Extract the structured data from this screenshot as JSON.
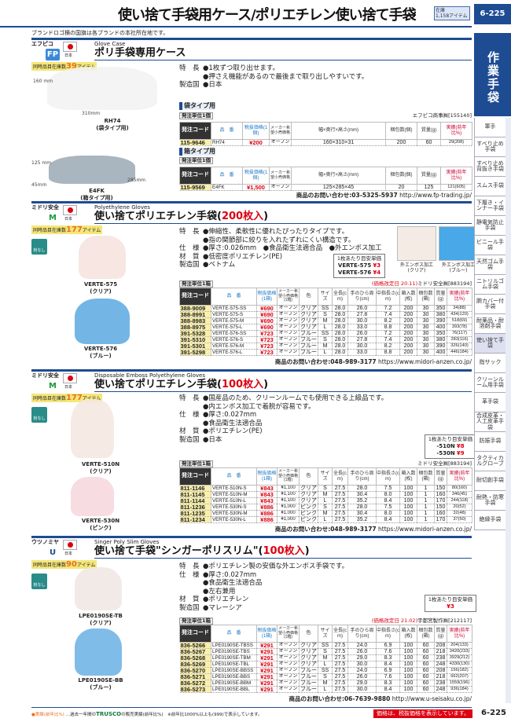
{
  "header": {
    "title": "使い捨て手袋用ケース/ポリエチレン使い捨て手袋",
    "stock_label": "在庫",
    "stock_count": "1,158アイテム",
    "page": "6-225"
  },
  "note": "ブランドロゴ横の国旗は各ブランドの本社所在地です。",
  "sidebar": {
    "category": "作業手袋",
    "active": 11,
    "items": [
      "軍手",
      "すべり止め手袋",
      "すべり止め背抜き手袋",
      "スムス手袋",
      "下履き・インナー手袋",
      "静電気防止手袋",
      "ビニール手袋",
      "天然ゴム手袋",
      "ニトリルゴム手袋",
      "腕カバー付手袋",
      "耐薬品・耐溶剤手袋",
      "使い捨て手袋",
      "指サック",
      "クリーンルーム用手袋",
      "革手袋",
      "合成皮革・人工皮革手袋",
      "防振手袋",
      "タクティカルグローブ",
      "耐切創手袋",
      "耐熱・防寒手袋",
      "絶縁手袋"
    ]
  },
  "products": [
    {
      "brand": "エフピコ",
      "logo": "FP",
      "country": "日本",
      "items_label": "同時品目在庫数",
      "items": "39",
      "items_unit": "アイテム",
      "subtitle": "Glove Case",
      "name": "ポリ手袋専用ケース",
      "name_red": "",
      "features": [
        [
          "特　長",
          "●1枚ずつ取り出せます。"
        ],
        [
          "",
          "●押さえ機能があるので最後まで取り出しやすいです。"
        ],
        [
          "製造国",
          "●日本"
        ]
      ],
      "images": [
        {
          "label": "RH74",
          "sub": "(袋タイプ用)",
          "dims": [
            "160 mm",
            "310mm"
          ]
        },
        {
          "label": "E4FK",
          "sub": "(箱タイプ用)",
          "dims": [
            "125 mm",
            "285mm",
            "45mm"
          ]
        }
      ],
      "tables": [
        {
          "tag": "袋タイプ用",
          "unit": "発注単位1個",
          "maker": "エフピコ商事㈱[155140]",
          "headers": [
            "発注コード",
            "品　番",
            "税抜価格(1個)",
            "メーカー希望小売価格",
            "幅×奥行×高さ(mm)",
            "梱包数(個)",
            "質量(g)",
            "実績(前年比%)"
          ],
          "rows": [
            [
              "115-9646",
              "RH74",
              "¥200",
              "オープン",
              "160×310×31",
              "200",
              "60",
              "29(208)"
            ]
          ]
        },
        {
          "tag": "箱タイプ用",
          "unit": "発注単位1個",
          "maker": "",
          "headers": [
            "発注コード",
            "品　番",
            "税抜価格(1個)",
            "メーカー希望小売価格",
            "幅×奥行×高さ(mm)",
            "梱包数(個)",
            "質量(g)",
            "実績(前年比%)"
          ],
          "rows": [
            [
              "115-9569",
              "E4FK",
              "¥1,500",
              "オープン",
              "125×285×45",
              "20",
              "125",
              "121(605)"
            ]
          ]
        }
      ],
      "contact": "商品のお問い合わせ:03-5325-5937",
      "url": "http://www.fp-trading.jp/"
    },
    {
      "brand": "ミドリ安全",
      "logo": "M",
      "country": "日本",
      "items_label": "同時品目在庫数",
      "items": "177",
      "items_unit": "アイテム",
      "powder": "粉なし",
      "subtitle": "Polyethylene Gloves",
      "name": "使い捨てポリエチレン手袋(",
      "name_red": "200枚入",
      "name_end": ")",
      "features": [
        [
          "特　長",
          "●伸縮性、柔軟性に優れたぴったりタイプです。"
        ],
        [
          "",
          "●指の関節部に絞りを入れたずれにくい構造です。"
        ],
        [
          "仕　様",
          "●厚さ:0.026mm　●食品衛生法適合品　●外エンボス加工"
        ],
        [
          "材　質",
          "●低密度ポリエチレン(PE)"
        ],
        [
          "製造国",
          "●ベトナム"
        ]
      ],
      "images": [
        {
          "label": "VERTE-575",
          "sub": "(クリア)"
        },
        {
          "label": "VERTE-576",
          "sub": "(ブルー)"
        }
      ],
      "closeups": [
        {
          "label": "外エンボス加工",
          "sub": "(クリア)"
        },
        {
          "label": "外エンボス加工",
          "sub": "(ブルー)"
        }
      ],
      "unit_price": {
        "title": "1枚あたり目安単価",
        "lines": [
          [
            "VERTE-575",
            "¥3"
          ],
          [
            "VERTE-576",
            "¥4"
          ]
        ]
      },
      "tables": [
        {
          "unit": "発注単位1箱",
          "price_date": "(価格改定日 20.11)",
          "maker": "ミドリ安全㈱[883194]",
          "headers": [
            "発注コード",
            "品　番",
            "税抜価格(1箱)",
            "メーカー希望小売価格(1箱)",
            "色",
            "サイズ",
            "全長(cm)",
            "手のひら周り(cm)",
            "中指長さ(cm)",
            "箱入数(枚)",
            "梱包数(箱)",
            "質量(g)",
            "実績(前年比%)"
          ],
          "rows": [
            [
              "388-9009",
              "VERTE-575-SS",
              "¥690",
              "オープン",
              "クリア",
              "SS",
              "28.0",
              "26.0",
              "7.2",
              "200",
              "30",
              "350",
              "34(88)"
            ],
            [
              "388-8991",
              "VERTE-575-S",
              "¥690",
              "オープン",
              "クリア",
              "S",
              "28.0",
              "27.8",
              "7.4",
              "200",
              "30",
              "380",
              "434(120)"
            ],
            [
              "388-8983",
              "VERTE-575-M",
              "¥690",
              "オープン",
              "クリア",
              "M",
              "28.0",
              "30.0",
              "8.2",
              "200",
              "30",
              "390",
              "518(69)"
            ],
            [
              "388-8975",
              "VERTE-575-L",
              "¥690",
              "オープン",
              "クリア",
              "L",
              "28.0",
              "33.0",
              "8.8",
              "200",
              "30",
              "400",
              "393(78)"
            ],
            [
              "391-5328",
              "VERTE-576-SS",
              "¥723",
              "オープン",
              "ブルー",
              "SS",
              "28.0",
              "26.0",
              "7.2",
              "200",
              "30",
              "350",
              "76(117)"
            ],
            [
              "391-5310",
              "VERTE-576-S",
              "¥723",
              "オープン",
              "ブルー",
              "S",
              "28.0",
              "27.8",
              "7.4",
              "200",
              "30",
              "380",
              "283(116)"
            ],
            [
              "391-5301",
              "VERTE-576-M",
              "¥723",
              "オープン",
              "ブルー",
              "M",
              "28.0",
              "30.0",
              "8.2",
              "200",
              "30",
              "390",
              "326(140)"
            ],
            [
              "391-5298",
              "VERTE-576-L",
              "¥723",
              "オープン",
              "ブルー",
              "L",
              "28.0",
              "33.0",
              "8.8",
              "200",
              "30",
              "400",
              "446(184)"
            ]
          ]
        }
      ],
      "contact": "商品のお問い合わせ:048-989-3177",
      "url": "https://www.midori-anzen.co.jp/"
    },
    {
      "brand": "ミドリ安全",
      "logo": "M",
      "country": "日本",
      "items_label": "同時品目在庫数",
      "items": "177",
      "items_unit": "アイテム",
      "powder": "粉なし",
      "subtitle": "Disposable Emboss Polyethylene Gloves",
      "name": "使い捨てポリエチレン手袋(",
      "name_red": "100枚入",
      "name_end": ")",
      "features": [
        [
          "特　長",
          "●国産品のため、クリーンルームでも使用できる上級品です。"
        ],
        [
          "",
          "●内エンボス加工で着脱が容易です。"
        ],
        [
          "仕　様",
          "●厚さ:0.027mm"
        ],
        [
          "",
          "●食品衛生法適合品"
        ],
        [
          "材　質",
          "●ポリエチレン(PE)"
        ],
        [
          "製造国",
          "●日本"
        ]
      ],
      "images": [
        {
          "label": "VERTE-510N",
          "sub": "(クリア)"
        },
        {
          "label": "VERTE-530N",
          "sub": "(ピンク)"
        }
      ],
      "unit_price": {
        "title": "1枚あたり目安単価",
        "lines": [
          [
            "-510N",
            "¥8"
          ],
          [
            "-530N",
            "¥9"
          ]
        ]
      },
      "tables": [
        {
          "unit": "発注単位1箱",
          "price_date": "",
          "maker": "ミドリ安全㈱[883194]",
          "headers": [
            "発注コード",
            "品　番",
            "税抜価格(1箱)",
            "メーカー希望小売価格(1箱)",
            "色",
            "サイズ",
            "全長(cm)",
            "手のひら周り(cm)",
            "中指長さ(cm)",
            "箱入数(枚)",
            "梱包数(箱)",
            "質量(g)",
            "実績(前年比%)"
          ],
          "rows": [
            [
              "811-1146",
              "VERTE-510N-S",
              "¥843",
              "¥1,100",
              "クリア",
              "S",
              "27.5",
              "28.0",
              "7.5",
              "100",
              "1",
              "150",
              "80(160)"
            ],
            [
              "811-1145",
              "VERTE-510N-M",
              "¥843",
              "¥1,100",
              "クリア",
              "M",
              "27.5",
              "30.4",
              "8.0",
              "100",
              "1",
              "160",
              "346(45)"
            ],
            [
              "811-1144",
              "VERTE-510N-L",
              "¥843",
              "¥1,100",
              "クリア",
              "L",
              "27.5",
              "35.2",
              "8.4",
              "100",
              "1",
              "170",
              "244(118)"
            ],
            [
              "811-1236",
              "VERTE-530N-S",
              "¥886",
              "¥1,000",
              "ピンク",
              "S",
              "27.5",
              "28.0",
              "7.5",
              "100",
              "1",
              "150",
              "20(52)"
            ],
            [
              "811-1235",
              "VERTE-530N-M",
              "¥886",
              "¥1,000",
              "ピンク",
              "M",
              "27.5",
              "30.4",
              "8.0",
              "100",
              "1",
              "160",
              "32(48)"
            ],
            [
              "811-1234",
              "VERTE-530N-L",
              "¥886",
              "¥1,000",
              "ピンク",
              "L",
              "27.5",
              "35.2",
              "8.4",
              "100",
              "1",
              "170",
              "37(50)"
            ]
          ]
        }
      ],
      "contact": "商品のお問い合わせ:048-989-3177",
      "url": "https://www.midori-anzen.co.jp/"
    },
    {
      "brand": "ウツノミヤ",
      "logo": "U",
      "country": "日本",
      "items_label": "同時品目在庫数",
      "items": "90",
      "items_unit": "アイテム",
      "powder": "粉なし",
      "subtitle": "Singer Poly Slim Gloves",
      "name": "使い捨て手袋\"シンガーポリスリム\"(",
      "name_red": "100枚入",
      "name_end": ")",
      "features": [
        [
          "特　長",
          "●ポリエチレン製の安価な外エンボス手袋です。"
        ],
        [
          "仕　様",
          "●厚さ:0.027mm"
        ],
        [
          "",
          "●食品衛生法適合品"
        ],
        [
          "",
          "●左右兼用"
        ],
        [
          "材　質",
          "●ポリエチレン"
        ],
        [
          "製造国",
          "●マレーシア"
        ]
      ],
      "images": [
        {
          "label": "LPE0190SE-TB",
          "sub": "(クリア)"
        },
        {
          "label": "LPE0190SE-BB",
          "sub": "(ブルー)"
        }
      ],
      "unit_price": {
        "title": "1枚あたり目安単価",
        "lines": [
          [
            "",
            "¥3"
          ]
        ]
      },
      "tables": [
        {
          "unit": "発注単位1箱",
          "price_date": "(価格改定日 21.02)",
          "maker": "宇都宮製作㈱[212117]",
          "headers": [
            "発注コード",
            "品　番",
            "税抜価格(1箱)",
            "メーカー希望小売価格(1箱)",
            "色",
            "サイズ",
            "全長(cm)",
            "手のひら周り(cm)",
            "中指長さ(cm)",
            "箱入数(枚)",
            "梱包数(箱)",
            "質量(g)",
            "実績(前年比%)"
          ],
          "rows": [
            [
              "836-5266",
              "LPE0190SE-TBSS",
              "¥291",
              "オープン",
              "クリア",
              "SS",
              "27.5",
              "24.0",
              "6.9",
              "100",
              "60",
              "208",
              "204(133)"
            ],
            [
              "836-5267",
              "LPE0190SE-TBS",
              "¥291",
              "オープン",
              "クリア",
              "S",
              "27.5",
              "26.0",
              "7.6",
              "100",
              "60",
              "218",
              "3420(233)"
            ],
            [
              "836-5268",
              "LPE0190SE-TBM",
              "¥291",
              "オープン",
              "クリア",
              "M",
              "27.5",
              "29.0",
              "8.3",
              "100",
              "60",
              "238",
              "3929(212)"
            ],
            [
              "836-5269",
              "LPE0190SE-TBL",
              "¥291",
              "オープン",
              "クリア",
              "L",
              "27.5",
              "30.0",
              "8.4",
              "100",
              "60",
              "248",
              "4330(130)"
            ],
            [
              "836-5270",
              "LPE0190SE-BBSS",
              "¥291",
              "オープン",
              "ブルー",
              "SS",
              "27.5",
              "24.0",
              "6.9",
              "100",
              "60",
              "208",
              "156(182)"
            ],
            [
              "836-5271",
              "LPE0190SE-BBS",
              "¥291",
              "オープン",
              "ブルー",
              "S",
              "27.5",
              "26.0",
              "7.6",
              "100",
              "60",
              "218",
              "662(207)"
            ],
            [
              "836-5272",
              "LPE0190SE-BBM",
              "¥291",
              "オープン",
              "ブルー",
              "M",
              "27.5",
              "29.0",
              "8.3",
              "100",
              "60",
              "238",
              "1559(196)"
            ],
            [
              "836-5273",
              "LPE0190SE-BBL",
              "¥291",
              "オープン",
              "ブルー",
              "L",
              "27.5",
              "30.0",
              "8.4",
              "100",
              "60",
              "248",
              "936(184)"
            ]
          ]
        }
      ],
      "contact": "商品のお問い合わせ:06-7639-9880",
      "url": "http://www.u-seisaku.co.jp/"
    }
  ],
  "footer": {
    "legend": "●実績(前年比%)",
    "legend_text": "…過去一年間の",
    "brand": "TRUSCO",
    "legend_text2": "の販売実績(前年比%)　※前年比1000%以上も(999)で表示しています。",
    "price_note": "価格は、税抜価格を表示しています。",
    "page": "6-225"
  },
  "colors": {
    "brand_blue": "#1d4c93",
    "price_red": "#dd0011",
    "code_yellow": "#fbf0a8"
  }
}
